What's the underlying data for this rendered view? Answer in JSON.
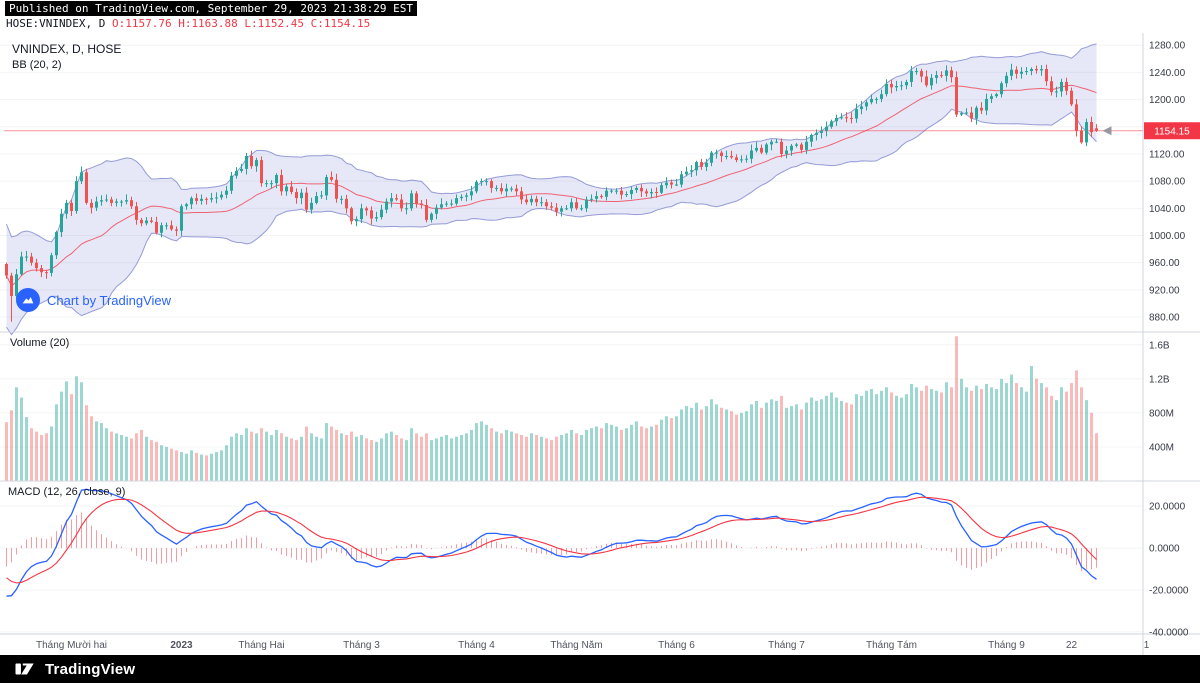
{
  "header": {
    "published_line": "Published on TradingView.com, September 29, 2023 21:38:29 EST",
    "symbol": "HOSE:VNINDEX, D",
    "ohlc": "O:1157.76 H:1163.88 L:1152.45 C:1154.15"
  },
  "panels": {
    "price": {
      "legend1": "VNINDEX, D, HOSE",
      "legend2": "BB (20, 2)",
      "watermark": "Chart by TradingView",
      "last_price_label": "1154.15",
      "axis_ticks": [
        "1280.00",
        "1240.00",
        "1200.00",
        "1160.00",
        "1120.00",
        "1080.00",
        "1040.00",
        "1000.00",
        "960.00",
        "920.00",
        "880.00"
      ]
    },
    "volume": {
      "legend": "Volume (20)",
      "axis_ticks": [
        {
          "label": "1.6B",
          "value": 1600
        },
        {
          "label": "1.2B",
          "value": 1200
        },
        {
          "label": "800M",
          "value": 800
        },
        {
          "label": "400M",
          "value": 400
        }
      ]
    },
    "macd": {
      "legend": "MACD (12, 26, close, 9)",
      "axis_ticks": [
        "20.0000",
        "0.0000",
        "-20.0000",
        "-40.0000"
      ]
    }
  },
  "time_axis": {
    "labels": [
      {
        "text": "Tháng Mười hai",
        "bar": 13,
        "bold": false
      },
      {
        "text": "2023",
        "bar": 35,
        "bold": true
      },
      {
        "text": "Tháng Hai",
        "bar": 51,
        "bold": false
      },
      {
        "text": "Tháng 3",
        "bar": 71,
        "bold": false
      },
      {
        "text": "Tháng 4",
        "bar": 94,
        "bold": false
      },
      {
        "text": "Tháng Năm",
        "bar": 114,
        "bold": false
      },
      {
        "text": "Tháng 6",
        "bar": 134,
        "bold": false
      },
      {
        "text": "Tháng 7",
        "bar": 156,
        "bold": false
      },
      {
        "text": "Tháng Tám",
        "bar": 177,
        "bold": false
      },
      {
        "text": "Tháng 9",
        "bar": 200,
        "bold": false
      },
      {
        "text": "22",
        "bar": 213,
        "bold": false
      },
      {
        "text": "1",
        "bar": 228,
        "bold": false
      }
    ]
  },
  "footer": {
    "brand": "TradingView"
  },
  "colors": {
    "up": "#26a69a",
    "down": "#ef5350",
    "vol_up": "rgba(38,166,154,0.45)",
    "vol_down": "rgba(239,83,80,0.40)",
    "bb_fill": "rgba(98,110,212,0.16)",
    "bb_line": "rgba(86,97,190,0.60)",
    "bb_basis": "rgba(242,54,69,0.75)",
    "macd_line": "#2962ff",
    "macd_signal": "#f23645",
    "macd_hist": "rgba(242,54,69,0.50)",
    "price_line": "rgba(242,54,69,0.55)",
    "tag_bg": "#f23645",
    "separator": "#d1d4dc",
    "axis_text": "#363a45",
    "time_text": "#50535e",
    "grid": "rgba(42,46,57,0.055)"
  },
  "chart_data": {
    "type": "candlestick",
    "title": "VNINDEX, D, HOSE",
    "x_axis": "daily bars, mid-Nov 2022 to Sep 29 2023",
    "ylabel": "index points",
    "price_range": [
      858,
      1298
    ],
    "volume_range_millions": [
      0,
      1750
    ],
    "macd_range": [
      -41,
      32
    ],
    "indicators": {
      "bollinger": {
        "length": 20,
        "mult": 2
      },
      "volume_ma": 20,
      "macd": {
        "fast": 12,
        "slow": 26,
        "signal": 9,
        "source": "close"
      }
    },
    "last": {
      "open": 1157.76,
      "high": 1163.88,
      "low": 1152.45,
      "close": 1154.15
    },
    "closes": [
      941,
      911,
      943,
      969,
      969,
      960,
      952,
      946,
      945,
      971,
      1005,
      1032,
      1048,
      1036,
      1080,
      1093,
      1048,
      1041,
      1050,
      1052,
      1053,
      1048,
      1050,
      1050,
      1052,
      1043,
      1023,
      1018,
      1022,
      1020,
      1004,
      1015,
      1015,
      1009,
      1007,
      1043,
      1046,
      1055,
      1051,
      1054,
      1053,
      1055,
      1056,
      1060,
      1066,
      1088,
      1095,
      1098,
      1117,
      1102,
      1111,
      1077,
      1077,
      1077,
      1089,
      1065,
      1072,
      1064,
      1055,
      1063,
      1038,
      1048,
      1058,
      1059,
      1086,
      1082,
      1054,
      1054,
      1040,
      1021,
      1024,
      1040,
      1037,
      1025,
      1027,
      1038,
      1050,
      1055,
      1053,
      1040,
      1040,
      1062,
      1047,
      1045,
      1023,
      1032,
      1041,
      1046,
      1047,
      1047,
      1055,
      1057,
      1059,
      1065,
      1079,
      1080,
      1080,
      1070,
      1070,
      1065,
      1069,
      1069,
      1065,
      1053,
      1049,
      1054,
      1049,
      1049,
      1043,
      1041,
      1035,
      1040,
      1040,
      1049,
      1040,
      1040,
      1053,
      1054,
      1058,
      1057,
      1066,
      1066,
      1066,
      1060,
      1061,
      1067,
      1070,
      1065,
      1062,
      1064,
      1063,
      1074,
      1078,
      1075,
      1075,
      1090,
      1094,
      1096,
      1108,
      1101,
      1107,
      1122,
      1122,
      1117,
      1117,
      1115,
      1111,
      1112,
      1113,
      1125,
      1129,
      1122,
      1134,
      1138,
      1138,
      1120,
      1125,
      1132,
      1134,
      1126,
      1138,
      1148,
      1151,
      1154,
      1160,
      1168,
      1173,
      1174,
      1173,
      1172,
      1186,
      1190,
      1196,
      1201,
      1201,
      1208,
      1223,
      1218,
      1220,
      1221,
      1226,
      1242,
      1242,
      1234,
      1221,
      1232,
      1236,
      1235,
      1243,
      1233,
      1178,
      1180,
      1181,
      1172,
      1188,
      1184,
      1201,
      1205,
      1208,
      1224,
      1235,
      1244,
      1238,
      1241,
      1242,
      1245,
      1243,
      1245,
      1227,
      1211,
      1212,
      1226,
      1213,
      1193,
      1154,
      1137,
      1167,
      1152,
      1154.15
    ],
    "volumes_millions": [
      690,
      830,
      1100,
      980,
      750,
      620,
      580,
      540,
      560,
      640,
      900,
      1050,
      1170,
      1020,
      1230,
      1160,
      890,
      760,
      700,
      680,
      620,
      580,
      560,
      540,
      520,
      500,
      560,
      600,
      520,
      480,
      460,
      420,
      400,
      380,
      360,
      340,
      320,
      360,
      330,
      310,
      300,
      320,
      340,
      360,
      420,
      520,
      560,
      540,
      620,
      580,
      560,
      620,
      580,
      540,
      600,
      560,
      520,
      500,
      480,
      520,
      640,
      560,
      520,
      500,
      680,
      640,
      600,
      560,
      540,
      580,
      520,
      540,
      500,
      480,
      460,
      500,
      560,
      580,
      540,
      500,
      480,
      620,
      560,
      520,
      560,
      480,
      500,
      520,
      540,
      500,
      520,
      540,
      560,
      600,
      680,
      700,
      660,
      620,
      580,
      560,
      600,
      580,
      560,
      540,
      520,
      560,
      540,
      520,
      500,
      480,
      520,
      540,
      560,
      600,
      560,
      540,
      600,
      620,
      640,
      620,
      680,
      660,
      640,
      600,
      620,
      660,
      700,
      640,
      620,
      640,
      660,
      720,
      760,
      740,
      760,
      840,
      880,
      860,
      920,
      840,
      880,
      960,
      900,
      860,
      840,
      820,
      780,
      800,
      820,
      900,
      940,
      860,
      920,
      960,
      940,
      1000,
      860,
      880,
      900,
      840,
      920,
      980,
      940,
      960,
      1000,
      1040,
      980,
      940,
      920,
      900,
      1020,
      1000,
      1060,
      1080,
      1020,
      1060,
      1100,
      1040,
      1000,
      980,
      1020,
      1140,
      1100,
      1060,
      1120,
      1080,
      1060,
      1040,
      1160,
      1100,
      1700,
      1200,
      1100,
      1060,
      1120,
      1080,
      1140,
      1100,
      1080,
      1200,
      1150,
      1250,
      1150,
      1100,
      1050,
      1350,
      1200,
      1150,
      1100,
      1000,
      950,
      1100,
      1050,
      1150,
      1300,
      1100,
      950,
      800,
      560
    ]
  }
}
